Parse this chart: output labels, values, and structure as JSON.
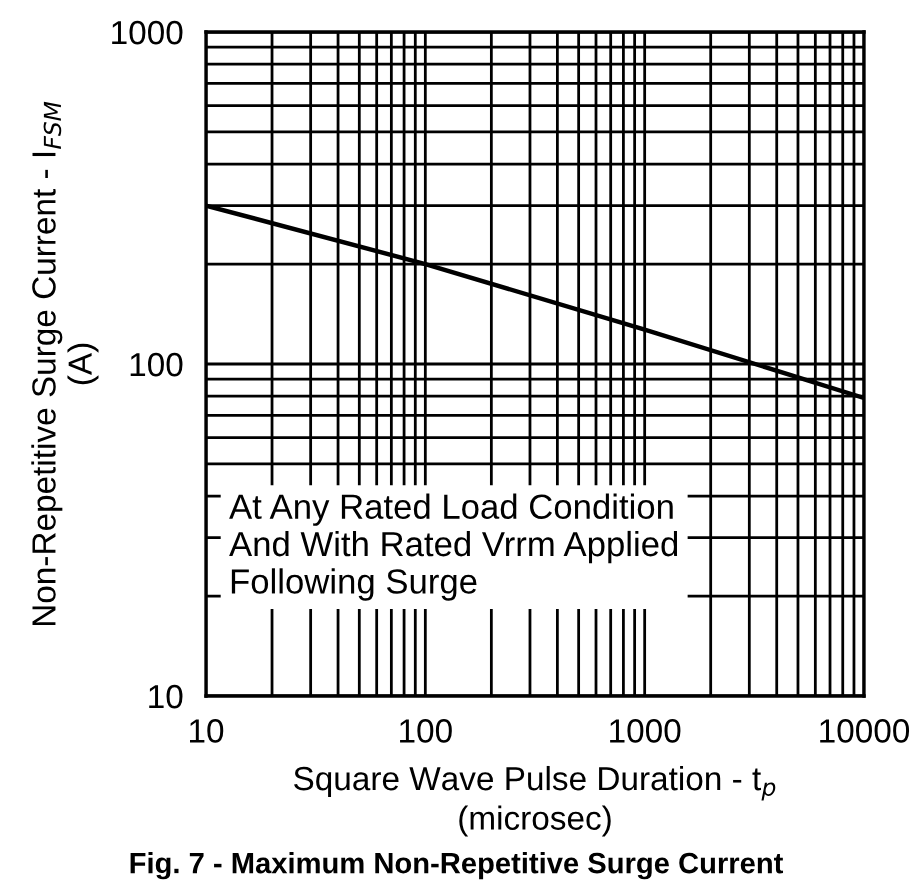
{
  "chart_data": {
    "type": "line",
    "title": "Fig. 7 - Maximum Non-Repetitive Surge Current",
    "xlabel": "Square Wave Pulse Duration - t$_{p}$\n(microsec)",
    "ylabel": "Non-Repetitive Surge Current - I$_{FSM}$\n(A)",
    "x": [
      10,
      100,
      1000,
      10000
    ],
    "series": [
      {
        "color": "#000000",
        "values": [
          300,
          200,
          127,
          79
        ]
      }
    ],
    "log": "xy",
    "xlim": [
      10,
      10000
    ],
    "ylim": [
      10,
      1000
    ],
    "xticks": [
      10,
      100,
      1000,
      10000
    ],
    "yticks": [
      10,
      100,
      1000
    ],
    "grid": true,
    "marker": "none",
    "line_style": "solid",
    "annotations": [
      "At Any Rated Load Condition\nAnd With Rated Vrrm Applied\nFollowing Surge"
    ]
  }
}
